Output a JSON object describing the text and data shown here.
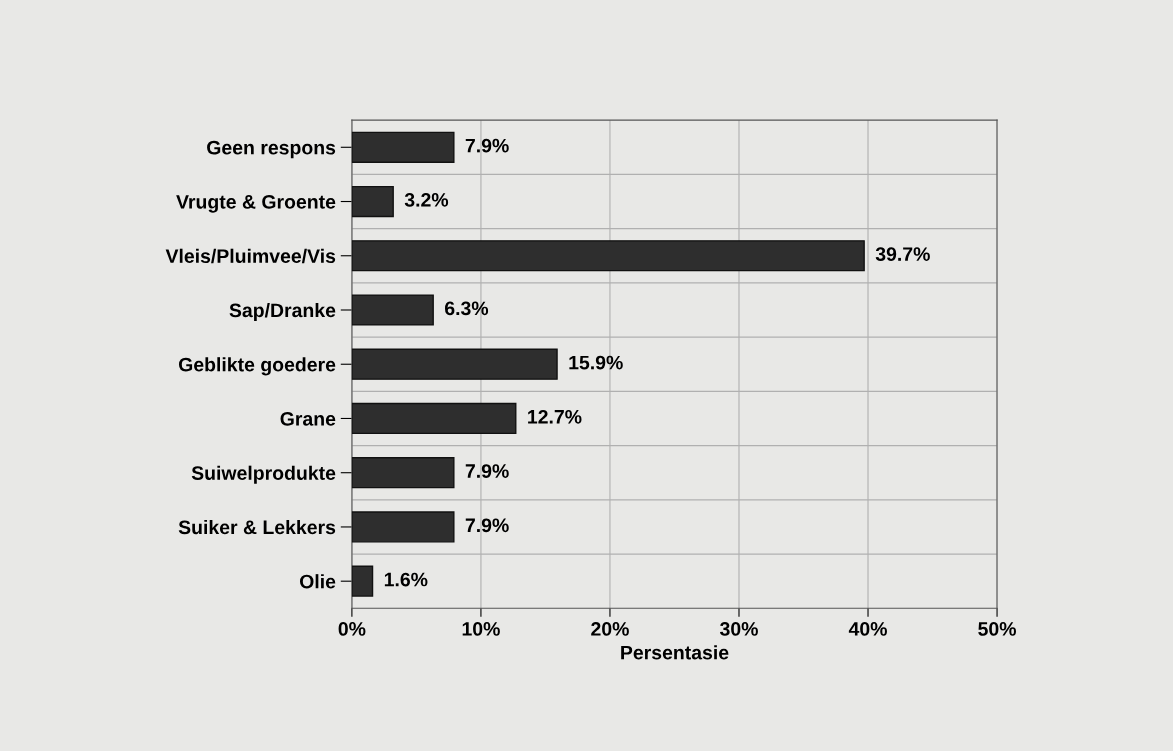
{
  "chart_data": {
    "type": "bar",
    "orientation": "horizontal",
    "xlabel": "Persentasie",
    "categories": [
      "Geen respons",
      "Vrugte & Groente",
      "Vleis/Pluimvee/Vis",
      "Sap/Dranke",
      "Geblikte goedere",
      "Grane",
      "Suiwelprodukte",
      "Suiker & Lekkers",
      "Olie"
    ],
    "values": [
      7.9,
      3.2,
      39.7,
      6.3,
      15.9,
      12.7,
      7.9,
      7.9,
      1.6
    ],
    "value_labels": [
      "7.9%",
      "3.2%",
      "39.7%",
      "6.3%",
      "15.9%",
      "12.7%",
      "7.9%",
      "7.9%",
      "1.6%"
    ],
    "color": "#2e2e2e",
    "xlim": [
      0,
      50
    ],
    "xticks": [
      {
        "value": 0,
        "label": "0%"
      },
      {
        "value": 10,
        "label": "10%"
      },
      {
        "value": 20,
        "label": "20%"
      },
      {
        "value": 30,
        "label": "30%"
      },
      {
        "value": 40,
        "label": "40%"
      },
      {
        "value": 50,
        "label": "50%"
      }
    ],
    "grid": true,
    "legend": false
  }
}
